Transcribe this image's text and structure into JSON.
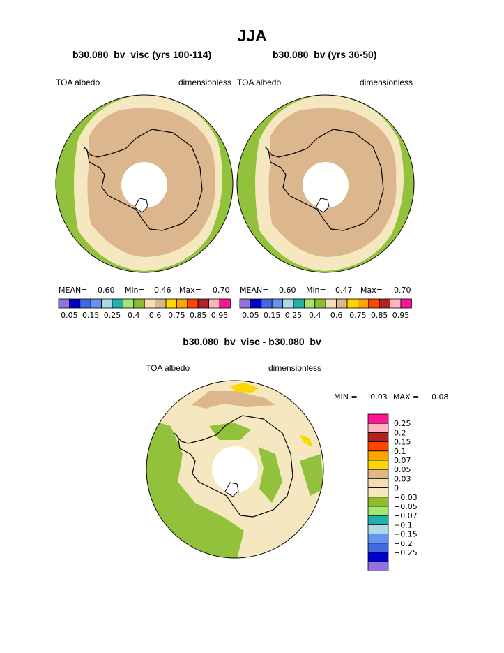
{
  "page": {
    "title": "JJA",
    "diff_title": "b30.080_bv_visc - b30.080_bv"
  },
  "colors": {
    "green": "#92c13c",
    "cream": "#f5e8c1",
    "tan": "#dcb68c",
    "yellow": "#f9d900",
    "coast": "#000000"
  },
  "panels": [
    {
      "case": "b30.080_bv_visc (yrs 100-114)",
      "variable": "TOA albedo",
      "units": "dimensionless",
      "stats": {
        "mean_label": "MEAN=",
        "mean": "0.60",
        "min_label": "Min=",
        "min": "0.46",
        "max_label": "Max=",
        "max": "0.70"
      }
    },
    {
      "case": "b30.080_bv (yrs 36-50)",
      "variable": "TOA albedo",
      "units": "dimensionless",
      "stats": {
        "mean_label": "MEAN=",
        "mean": "0.60",
        "min_label": "Min=",
        "min": "0.47",
        "max_label": "Max=",
        "max": "0.70"
      }
    }
  ],
  "diff_panel": {
    "variable": "TOA albedo",
    "units": "dimensionless",
    "min_label": "MIN =",
    "min": "−0.03",
    "max_label": "MAX =",
    "max": "0.08"
  },
  "colorbar_main": {
    "colors": [
      "#9370db",
      "#0000cd",
      "#4169e1",
      "#6495ed",
      "#add8e6",
      "#20b2aa",
      "#a2e66a",
      "#8fbc2f",
      "#f5deb3",
      "#deb887",
      "#ffd700",
      "#ffa500",
      "#ff4500",
      "#b22222",
      "#ffb6c1",
      "#ff1493"
    ],
    "labels": [
      "0.05",
      "0.15",
      "0.25",
      "0.4",
      "0.6",
      "0.75",
      "0.85",
      "0.95"
    ]
  },
  "colorbar_diff": {
    "colors": [
      "#ff1493",
      "#ffb6c1",
      "#b22222",
      "#ff4500",
      "#ffa500",
      "#ffd700",
      "#deb887",
      "#f5deb3",
      "#f5e8c1",
      "#8fbc2f",
      "#a2e66a",
      "#20b2aa",
      "#add8e6",
      "#6495ed",
      "#4169e1",
      "#0000cd",
      "#9370db"
    ],
    "labels": [
      "0.25",
      "0.2",
      "0.15",
      "0.1",
      "0.07",
      "0.05",
      "0.03",
      "0",
      "−0.03",
      "−0.05",
      "−0.07",
      "−0.1",
      "−0.15",
      "−0.2",
      "−0.25"
    ]
  }
}
